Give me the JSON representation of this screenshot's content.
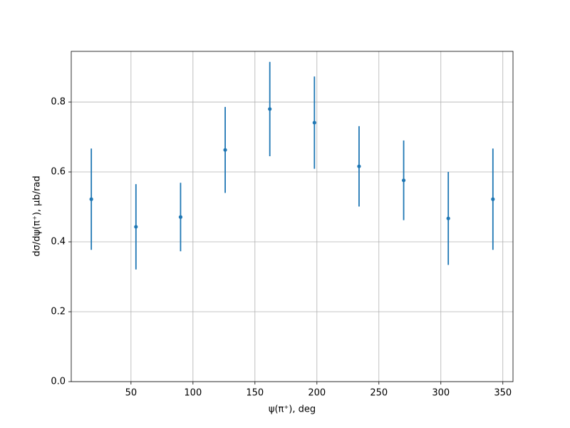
{
  "chart_data": {
    "type": "errorbar",
    "xlabel": "ψ(π⁺), deg",
    "ylabel": "dσ/dψ(π⁺), μb/rad",
    "x": [
      18,
      54,
      90,
      126,
      162,
      198,
      234,
      270,
      306,
      342
    ],
    "series": [
      {
        "color": "#1f77b4",
        "values": [
          0.522,
          0.443,
          0.471,
          0.663,
          0.78,
          0.741,
          0.616,
          0.576,
          0.467,
          0.522
        ],
        "errors": [
          0.145,
          0.122,
          0.098,
          0.123,
          0.135,
          0.132,
          0.115,
          0.114,
          0.133,
          0.145
        ]
      }
    ],
    "xlim": [
      1.8,
      358.2
    ],
    "xticks": [
      50,
      100,
      150,
      200,
      250,
      300,
      350
    ],
    "ylim": [
      0,
      0.945
    ],
    "yticks": [
      {
        "value": 0,
        "label": "0.0"
      },
      0.2,
      0.4,
      0.6,
      0.8
    ],
    "grid": true
  }
}
